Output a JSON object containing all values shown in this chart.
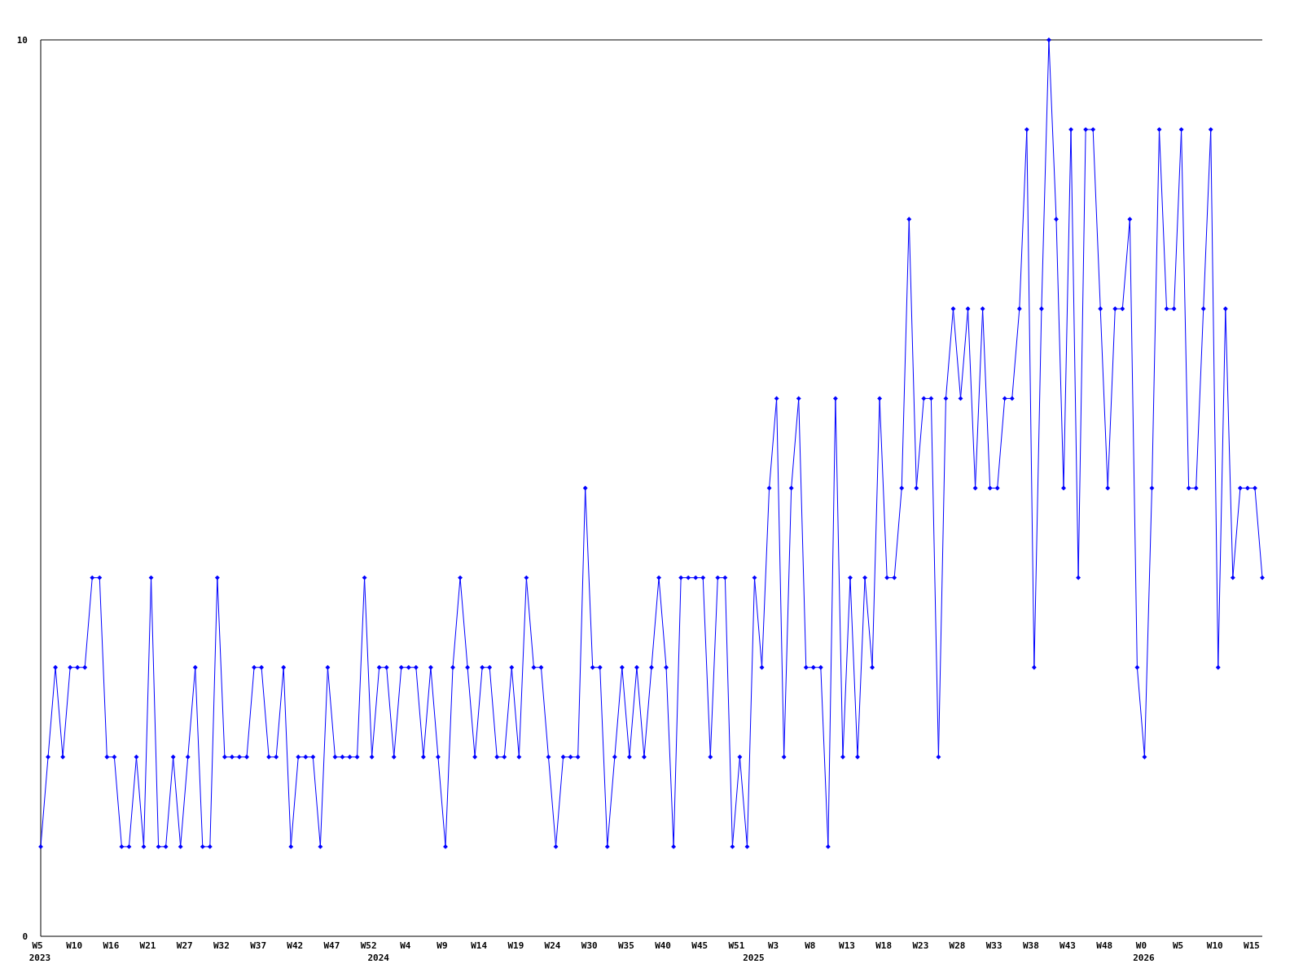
{
  "chart_data": {
    "type": "line",
    "categories": [
      "W5\n2023",
      null,
      null,
      null,
      null,
      "W10",
      null,
      null,
      null,
      null,
      "W16",
      null,
      null,
      null,
      null,
      "W21",
      null,
      null,
      null,
      null,
      "W27",
      null,
      null,
      null,
      null,
      "W32",
      null,
      null,
      null,
      null,
      "W37",
      null,
      null,
      null,
      null,
      "W42",
      null,
      null,
      null,
      null,
      "W47",
      null,
      null,
      null,
      null,
      "W52",
      "\n2024",
      null,
      null,
      null,
      "W4",
      null,
      null,
      null,
      null,
      "W9",
      null,
      null,
      null,
      null,
      "W14",
      null,
      null,
      null,
      null,
      "W19",
      null,
      null,
      null,
      null,
      "W24",
      null,
      null,
      null,
      null,
      "W30",
      null,
      null,
      null,
      null,
      "W35",
      null,
      null,
      null,
      null,
      "W40",
      null,
      null,
      null,
      null,
      "W45",
      null,
      null,
      null,
      null,
      "W51",
      null,
      "\n2025",
      null,
      null,
      "W3",
      null,
      null,
      null,
      null,
      "W8",
      null,
      null,
      null,
      null,
      "W13",
      null,
      null,
      null,
      null,
      "W18",
      null,
      null,
      null,
      null,
      "W23",
      null,
      null,
      null,
      null,
      "W28",
      null,
      null,
      null,
      null,
      "W33",
      null,
      null,
      null,
      null,
      "W38",
      null,
      null,
      null,
      null,
      "W43",
      null,
      null,
      null,
      null,
      "W48",
      null,
      null,
      null,
      null,
      "W0\n2026",
      null,
      null,
      null,
      null,
      "W5",
      null,
      null,
      null,
      null,
      "W10",
      null,
      null,
      null,
      null,
      "W15",
      null
    ],
    "series": [
      {
        "color": "#0000ff",
        "values": [
          1,
          2,
          3,
          2,
          3,
          3,
          3,
          4,
          4,
          2,
          2,
          1,
          1,
          2,
          1,
          4,
          1,
          1,
          2,
          1,
          2,
          3,
          1,
          1,
          4,
          2,
          2,
          2,
          2,
          3,
          3,
          2,
          2,
          3,
          1,
          2,
          2,
          2,
          1,
          3,
          2,
          2,
          2,
          2,
          4,
          2,
          3,
          3,
          2,
          3,
          3,
          3,
          2,
          3,
          2,
          1,
          3,
          4,
          3,
          2,
          3,
          3,
          2,
          2,
          3,
          2,
          4,
          3,
          3,
          2,
          1,
          2,
          2,
          2,
          5,
          3,
          3,
          1,
          2,
          3,
          2,
          3,
          2,
          3,
          4,
          3,
          1,
          4,
          4,
          4,
          4,
          2,
          4,
          4,
          1,
          2,
          1,
          4,
          3,
          5,
          6,
          2,
          5,
          6,
          3,
          3,
          3,
          1,
          6,
          2,
          4,
          2,
          4,
          3,
          6,
          4,
          4,
          5,
          8,
          5,
          6,
          6,
          2,
          6,
          7,
          6,
          7,
          5,
          7,
          5,
          5,
          6,
          6,
          7,
          9,
          3,
          7,
          10,
          8,
          5,
          9,
          4,
          9,
          9,
          7,
          5,
          7,
          7,
          8,
          3,
          2,
          5,
          9,
          7,
          7,
          9,
          5,
          5,
          7,
          9,
          3,
          7,
          4,
          5,
          5,
          5,
          4
        ]
      }
    ],
    "ylim": [
      0,
      10
    ],
    "yticks": [
      0,
      10
    ],
    "marker": "diamond",
    "line_style": "solid"
  }
}
